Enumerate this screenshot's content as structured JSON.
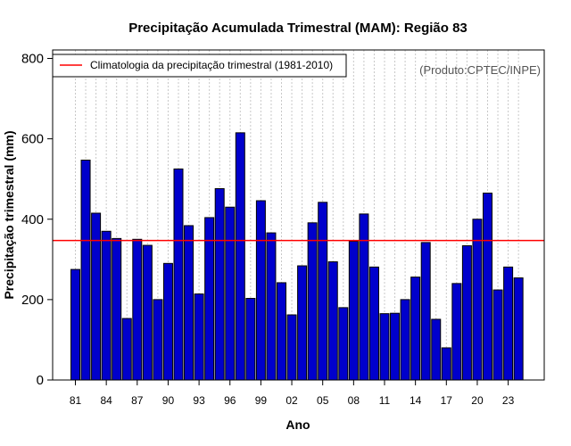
{
  "chart_data": {
    "type": "bar",
    "title": "Precipitação Acumulada Trimestral (MAM): Região 83",
    "xlabel": "Ano",
    "ylabel": "Precipitação trimestral (mm)",
    "ylim": [
      0,
      800
    ],
    "yticks": [
      0,
      200,
      400,
      600,
      800
    ],
    "categories": [
      "81",
      "82",
      "83",
      "84",
      "85",
      "86",
      "87",
      "88",
      "89",
      "90",
      "91",
      "92",
      "93",
      "94",
      "95",
      "96",
      "97",
      "98",
      "99",
      "00",
      "01",
      "02",
      "03",
      "04",
      "05",
      "06",
      "07",
      "08",
      "09",
      "10",
      "11",
      "12",
      "13",
      "14",
      "15",
      "16",
      "17",
      "18",
      "19",
      "20",
      "21",
      "22",
      "23",
      "24"
    ],
    "xtick_labels": [
      "81",
      "84",
      "87",
      "90",
      "93",
      "96",
      "99",
      "02",
      "05",
      "08",
      "11",
      "14",
      "17",
      "20",
      "23"
    ],
    "values": [
      275,
      547,
      415,
      370,
      352,
      153,
      350,
      335,
      200,
      290,
      525,
      384,
      214,
      404,
      476,
      430,
      615,
      203,
      446,
      366,
      242,
      162,
      284,
      391,
      442,
      294,
      180,
      345,
      413,
      281,
      165,
      166,
      200,
      256,
      342,
      151,
      80,
      240,
      334,
      400,
      465,
      224,
      281,
      254
    ],
    "bar_color": "#0000cc",
    "climatology": {
      "label": "Climatologia da precipitação trimestral (1981-2010)",
      "value": 347,
      "color": "#ff0000"
    },
    "legend_position": "top-left",
    "grid": "vertical-dotted",
    "source": "(Produto:CPTEC/INPE)"
  }
}
